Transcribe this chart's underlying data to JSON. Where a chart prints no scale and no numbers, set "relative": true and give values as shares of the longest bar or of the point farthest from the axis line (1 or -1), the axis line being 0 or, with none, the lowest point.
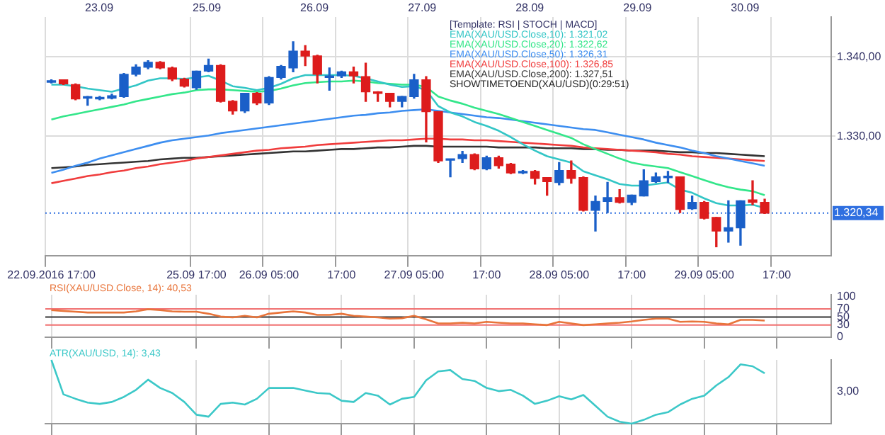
{
  "chart_data": [
    {
      "type": "candlestick",
      "categories": [
        "22.09.2016 17:00",
        null,
        null,
        null,
        null,
        null,
        null,
        null,
        null,
        null,
        null,
        null,
        "25.09 17:00",
        null,
        null,
        null,
        null,
        null,
        "26.09 05:00",
        null,
        null,
        null,
        null,
        null,
        "17:00",
        null,
        null,
        null,
        null,
        null,
        "27.09 05:00",
        null,
        null,
        null,
        null,
        null,
        "17:00",
        null,
        null,
        null,
        null,
        null,
        "28.09 05:00",
        null,
        null,
        null,
        null,
        null,
        "17:00",
        null,
        null,
        null,
        null,
        null,
        "29.09 05:00",
        null,
        null,
        null,
        null,
        null,
        "17:00",
        null,
        null,
        null,
        null
      ],
      "ohlc": [
        [
          1336.8,
          1337.1,
          1336.7,
          1337.0
        ],
        [
          1337.1,
          1337.1,
          1336.5,
          1336.6
        ],
        [
          1336.5,
          1336.6,
          1334.6,
          1334.7
        ],
        [
          1334.8,
          1335.0,
          1333.9,
          1334.9
        ],
        [
          1334.7,
          1335.0,
          1334.6,
          1334.9
        ],
        [
          1334.8,
          1335.3,
          1334.7,
          1335.1
        ],
        [
          1335.0,
          1337.9,
          1334.9,
          1337.8
        ],
        [
          1337.8,
          1339.0,
          1337.6,
          1338.7
        ],
        [
          1338.7,
          1339.5,
          1338.5,
          1339.3
        ],
        [
          1339.3,
          1339.4,
          1338.5,
          1338.6
        ],
        [
          1338.6,
          1338.7,
          1337.0,
          1337.2
        ],
        [
          1337.2,
          1337.3,
          1336.2,
          1336.3
        ],
        [
          1336.1,
          1338.2,
          1335.9,
          1338.2
        ],
        [
          1338.2,
          1339.7,
          1338.1,
          1338.9
        ],
        [
          1338.9,
          1339.0,
          1334.3,
          1334.4
        ],
        [
          1334.4,
          1334.5,
          1332.8,
          1333.2
        ],
        [
          1333.2,
          1335.4,
          1333.0,
          1335.4
        ],
        [
          1335.4,
          1335.5,
          1334.0,
          1334.2
        ],
        [
          1334.2,
          1337.5,
          1334.0,
          1337.4
        ],
        [
          1337.4,
          1338.9,
          1337.2,
          1338.8
        ],
        [
          1338.6,
          1341.9,
          1338.1,
          1340.7
        ],
        [
          1340.7,
          1341.4,
          1338.9,
          1340.1
        ],
        [
          1340.1,
          1340.2,
          1336.7,
          1337.8
        ],
        [
          1337.4,
          1338.6,
          1335.8,
          1337.6
        ],
        [
          1337.6,
          1338.2,
          1337.4,
          1338.1
        ],
        [
          1338.1,
          1338.7,
          1336.7,
          1337.6
        ],
        [
          1337.5,
          1339.2,
          1334.4,
          1335.6
        ],
        [
          1335.5,
          1335.6,
          1334.4,
          1335.4
        ],
        [
          1335.4,
          1335.4,
          1333.7,
          1334.4
        ],
        [
          1334.4,
          1335.0,
          1333.7,
          1335.0
        ],
        [
          1335.0,
          1337.8,
          1334.8,
          1337.1
        ],
        [
          1337.1,
          1337.5,
          1329.3,
          1333.1
        ],
        [
          1333.1,
          1333.1,
          1326.7,
          1326.9
        ],
        [
          1327.0,
          1327.1,
          1324.9,
          1327.1
        ],
        [
          1327.2,
          1328.1,
          1326.7,
          1327.7
        ],
        [
          1327.7,
          1327.8,
          1325.8,
          1325.9
        ],
        [
          1325.9,
          1327.5,
          1325.8,
          1327.3
        ],
        [
          1327.3,
          1327.5,
          1326.0,
          1326.3
        ],
        [
          1326.5,
          1326.6,
          1325.3,
          1325.4
        ],
        [
          1325.4,
          1325.7,
          1325.3,
          1325.6
        ],
        [
          1325.6,
          1325.7,
          1324.0,
          1324.7
        ],
        [
          1324.8,
          1324.8,
          1322.6,
          1324.3
        ],
        [
          1324.2,
          1326.7,
          1323.9,
          1325.7
        ],
        [
          1325.7,
          1326.9,
          1324.1,
          1324.7
        ],
        [
          1324.8,
          1324.9,
          1320.6,
          1320.7
        ],
        [
          1320.7,
          1322.5,
          1318.1,
          1321.8
        ],
        [
          1321.8,
          1324.2,
          1320.4,
          1322.3
        ],
        [
          1322.3,
          1323.3,
          1321.6,
          1321.7
        ],
        [
          1321.7,
          1322.6,
          1321.4,
          1322.6
        ],
        [
          1322.5,
          1325.8,
          1322.5,
          1324.4
        ],
        [
          1324.3,
          1325.4,
          1324.2,
          1324.9
        ],
        [
          1324.8,
          1325.6,
          1324.2,
          1324.9
        ],
        [
          1324.9,
          1324.9,
          1320.4,
          1320.8
        ],
        [
          1320.9,
          1322.5,
          1320.8,
          1321.7
        ],
        [
          1321.7,
          1321.8,
          1319.6,
          1319.7
        ],
        [
          1319.8,
          1319.8,
          1316.1,
          1318.1
        ],
        [
          1318.1,
          1321.9,
          1316.7,
          1318.5
        ],
        [
          1318.5,
          1321.9,
          1316.3,
          1321.9
        ],
        [
          1322.0,
          1324.4,
          1321.4,
          1321.7
        ],
        [
          1321.7,
          1322.1,
          1320.3,
          1320.34
        ],
        null,
        null,
        null,
        null,
        null
      ],
      "series": [
        {
          "type": "line",
          "name": "EMA(XAU/USD.Close,10): 1.321,02",
          "color": "#33c6c6",
          "values": [
            1336.5,
            1336.5,
            1336.3,
            1336.0,
            1335.8,
            1335.6,
            1336.0,
            1336.4,
            1337.0,
            1337.3,
            1337.3,
            1337.2,
            1337.4,
            1337.6,
            1337.0,
            1336.3,
            1336.1,
            1335.8,
            1336.1,
            1336.6,
            1337.3,
            1337.7,
            1337.7,
            1337.7,
            1337.7,
            1337.6,
            1337.3,
            1336.9,
            1336.5,
            1336.2,
            1336.3,
            1335.8,
            1333.8,
            1333.0,
            1332.5,
            1331.8,
            1331.3,
            1330.7,
            1329.9,
            1329.0,
            1328.2,
            1327.5,
            1327.1,
            1326.7,
            1325.6,
            1325.1,
            1324.6,
            1324.0,
            1323.8,
            1323.8,
            1324.0,
            1324.2,
            1323.3,
            1322.9,
            1322.2,
            1321.6,
            1321.3,
            1321.3,
            1321.4,
            1321.0,
            null,
            null,
            null,
            null,
            null
          ]
        },
        {
          "type": "line",
          "name": "EMA(XAU/USD.Close,20): 1.322,62",
          "color": "#33e68a",
          "values": [
            1332.1,
            1332.5,
            1332.8,
            1333.1,
            1333.4,
            1333.7,
            1334.0,
            1334.4,
            1334.7,
            1335.0,
            1335.3,
            1335.5,
            1335.8,
            1335.9,
            1335.9,
            1335.8,
            1335.7,
            1335.6,
            1335.7,
            1336.0,
            1336.4,
            1336.7,
            1336.8,
            1336.9,
            1336.9,
            1337.0,
            1336.9,
            1336.7,
            1336.6,
            1336.5,
            1336.5,
            1336.2,
            1335.0,
            1334.5,
            1334.1,
            1333.6,
            1333.2,
            1332.8,
            1332.3,
            1331.8,
            1331.3,
            1330.8,
            1330.3,
            1329.8,
            1329.0,
            1328.4,
            1327.8,
            1327.2,
            1326.7,
            1326.4,
            1326.2,
            1326.0,
            1325.5,
            1325.0,
            1324.5,
            1324.0,
            1323.6,
            1323.3,
            1323.1,
            1322.6,
            null,
            null,
            null,
            null,
            null
          ]
        },
        {
          "type": "line",
          "name": "EMA(XAU/USD.Close,50): 1.326,31",
          "color": "#3d8ef0",
          "values": [
            1325.4,
            1325.8,
            1326.3,
            1326.7,
            1327.2,
            1327.6,
            1328.0,
            1328.4,
            1328.8,
            1329.2,
            1329.5,
            1329.7,
            1329.9,
            1330.1,
            1330.4,
            1330.6,
            1330.8,
            1331.0,
            1331.2,
            1331.4,
            1331.6,
            1331.8,
            1332.0,
            1332.2,
            1332.4,
            1332.6,
            1332.7,
            1332.9,
            1333.0,
            1333.2,
            1333.3,
            1333.4,
            1333.2,
            1333.0,
            1332.8,
            1332.6,
            1332.4,
            1332.3,
            1332.1,
            1331.9,
            1331.7,
            1331.5,
            1331.3,
            1331.1,
            1330.9,
            1330.8,
            1330.5,
            1330.2,
            1329.9,
            1329.6,
            1329.2,
            1328.9,
            1328.6,
            1328.2,
            1327.9,
            1327.5,
            1327.2,
            1326.9,
            1326.6,
            1326.3,
            null,
            null,
            null,
            null,
            null
          ]
        },
        {
          "type": "line",
          "name": "EMA(XAU/USD.Close,100): 1.326,85",
          "color": "#f03c3c",
          "values": [
            1324.1,
            1324.4,
            1324.7,
            1325.0,
            1325.2,
            1325.5,
            1325.7,
            1326.0,
            1326.2,
            1326.5,
            1326.7,
            1326.9,
            1327.2,
            1327.4,
            1327.6,
            1327.8,
            1328.0,
            1328.2,
            1328.3,
            1328.5,
            1328.6,
            1328.7,
            1328.9,
            1329.0,
            1329.1,
            1329.2,
            1329.3,
            1329.4,
            1329.5,
            1329.5,
            1329.6,
            1329.7,
            1329.7,
            1329.6,
            1329.6,
            1329.5,
            1329.5,
            1329.4,
            1329.3,
            1329.2,
            1329.1,
            1329.0,
            1328.9,
            1328.8,
            1328.6,
            1328.5,
            1328.4,
            1328.3,
            1328.2,
            1328.1,
            1328.0,
            1327.8,
            1327.7,
            1327.5,
            1327.4,
            1327.3,
            1327.2,
            1327.1,
            1327.0,
            1326.9,
            null,
            null,
            null,
            null,
            null
          ]
        },
        {
          "type": "line",
          "name": "EMA(XAU/USD.Close,200): 1.327,51",
          "color": "#333333",
          "values": [
            1326.0,
            1326.1,
            1326.2,
            1326.4,
            1326.5,
            1326.6,
            1326.7,
            1326.8,
            1326.9,
            1327.1,
            1327.2,
            1327.3,
            1327.3,
            1327.4,
            1327.5,
            1327.6,
            1327.7,
            1327.8,
            1327.9,
            1328.0,
            1328.1,
            1328.1,
            1328.2,
            1328.3,
            1328.4,
            1328.4,
            1328.5,
            1328.6,
            1328.6,
            1328.7,
            1328.8,
            1328.8,
            1328.7,
            1328.7,
            1328.7,
            1328.7,
            1328.7,
            1328.6,
            1328.6,
            1328.6,
            1328.6,
            1328.5,
            1328.5,
            1328.5,
            1328.4,
            1328.4,
            1328.3,
            1328.3,
            1328.2,
            1328.2,
            1328.2,
            1328.1,
            1328.0,
            1328.0,
            1327.9,
            1327.9,
            1327.8,
            1327.7,
            1327.6,
            1327.5,
            null,
            null,
            null,
            null,
            null
          ]
        }
      ],
      "ylim": [
        1315,
        1345
      ],
      "yticks": [
        {
          "value": 1340,
          "label": "1.340,00"
        },
        {
          "value": 1330,
          "label": "1.330,00"
        }
      ],
      "ref_lines": [
        {
          "axis": "y",
          "value": 1320.34,
          "label": "1.320,34",
          "color": "#2f6fe0",
          "line_style": "dotted"
        }
      ],
      "annotations": [
        "[Template: RSI | STOCH | MACD]",
        "SHOWTIMETOEND(XAU/USD)(0:29:51)",
        "23.09",
        "25.09",
        "26.09",
        "27.09",
        "28.09",
        "29.09",
        "30.09"
      ],
      "legend": "top",
      "grid": true
    },
    {
      "type": "line",
      "categories": [
        null,
        null,
        null,
        null,
        null,
        null,
        null,
        null,
        null,
        null,
        null,
        null,
        null,
        null,
        null,
        null,
        null,
        null,
        null,
        null,
        null,
        null,
        null,
        null,
        null,
        null,
        null,
        null,
        null,
        null,
        null,
        null,
        null,
        null,
        null,
        null,
        null,
        null,
        null,
        null,
        null,
        null,
        null,
        null,
        null,
        null,
        null,
        null,
        null,
        null,
        null,
        null,
        null,
        null,
        null,
        null,
        null,
        null,
        null,
        null,
        null,
        null,
        null,
        null,
        null
      ],
      "series": [
        {
          "name": "RSI(XAU/USD.Close, 14): 40,53",
          "color": "#e8743a",
          "values": [
            67,
            65,
            63,
            61,
            61,
            61,
            61,
            64,
            69,
            67,
            64,
            63,
            63,
            58,
            51,
            49,
            53,
            49,
            58,
            61,
            64,
            61,
            55,
            55,
            58,
            53,
            51,
            49,
            46,
            47,
            53,
            44,
            34,
            34,
            36,
            34,
            38,
            36,
            34,
            34,
            32,
            30,
            38,
            34,
            30,
            32,
            34,
            36,
            39,
            43,
            46,
            46,
            38,
            39,
            38,
            34,
            32,
            43,
            43,
            41,
            null,
            null,
            null,
            null,
            null
          ]
        }
      ],
      "ylim": [
        0,
        105
      ],
      "yticks": [
        100,
        70,
        50,
        30,
        0
      ],
      "ref_lines": [
        {
          "axis": "y",
          "value": 70,
          "color": "#f07070"
        },
        {
          "axis": "y",
          "value": 50,
          "color": "#333333"
        },
        {
          "axis": "y",
          "value": 30,
          "color": "#f07070"
        }
      ],
      "legend": "top left",
      "tick_labels": "y",
      "grid": "x"
    },
    {
      "type": "line",
      "categories": [
        null,
        null,
        null,
        null,
        null,
        null,
        null,
        null,
        null,
        null,
        null,
        null,
        null,
        null,
        null,
        null,
        null,
        null,
        null,
        null,
        null,
        null,
        null,
        null,
        null,
        null,
        null,
        null,
        null,
        null,
        null,
        null,
        null,
        null,
        null,
        null,
        null,
        null,
        null,
        null,
        null,
        null,
        null,
        null,
        null,
        null,
        null,
        null,
        null,
        null,
        null,
        null,
        null,
        null,
        null,
        null,
        null,
        null,
        null,
        null,
        null,
        null,
        null,
        null,
        null
      ],
      "series": [
        {
          "name": "ATR(XAU/USD, 14): 3,43",
          "color": "#3cc8c8",
          "values": [
            1.0,
            0.46,
            0.39,
            0.33,
            0.31,
            0.34,
            0.42,
            0.53,
            0.69,
            0.56,
            0.48,
            0.34,
            0.14,
            0.11,
            0.31,
            0.33,
            0.3,
            0.39,
            0.56,
            0.56,
            0.56,
            0.52,
            0.48,
            0.47,
            0.36,
            0.34,
            0.48,
            0.44,
            0.3,
            0.39,
            0.42,
            0.68,
            0.82,
            0.84,
            0.7,
            0.67,
            0.56,
            0.51,
            0.53,
            0.44,
            0.31,
            0.36,
            0.43,
            0.38,
            0.45,
            0.28,
            0.11,
            0.03,
            0.0,
            0.06,
            0.14,
            0.18,
            0.3,
            0.39,
            0.44,
            0.6,
            0.73,
            0.93,
            0.9,
            0.79,
            null,
            null,
            null,
            null,
            null
          ]
        }
      ],
      "relative": true,
      "annotations": [
        "3,00"
      ],
      "legend": "top left",
      "tick_labels": false,
      "grid": "x"
    }
  ]
}
